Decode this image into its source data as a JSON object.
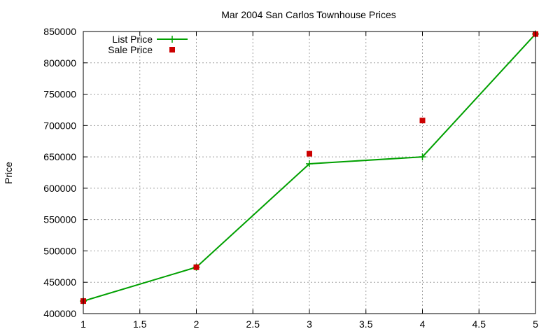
{
  "chart_data": {
    "type": "line",
    "title": "Mar 2004 San Carlos Townhouse Prices",
    "xlabel": "",
    "ylabel": "Price",
    "xlim": [
      1,
      5
    ],
    "ylim": [
      400000,
      850000
    ],
    "x_ticks": [
      "1",
      "1.5",
      "2",
      "2.5",
      "3",
      "3.5",
      "4",
      "4.5",
      "5"
    ],
    "y_ticks": [
      "400000",
      "450000",
      "500000",
      "550000",
      "600000",
      "650000",
      "700000",
      "750000",
      "800000",
      "850000"
    ],
    "grid": true,
    "legend_position": "top-left",
    "series": [
      {
        "name": "List Price",
        "style": "line-with-plus-markers",
        "color": "#00a000",
        "x": [
          1,
          2,
          3,
          4,
          5
        ],
        "y": [
          420000,
          474000,
          639000,
          650000,
          846000
        ]
      },
      {
        "name": "Sale Price",
        "style": "square-markers",
        "color": "#cc0000",
        "x": [
          1,
          2,
          3,
          4,
          5
        ],
        "y": [
          420000,
          474000,
          655000,
          708000,
          846000
        ]
      }
    ]
  }
}
